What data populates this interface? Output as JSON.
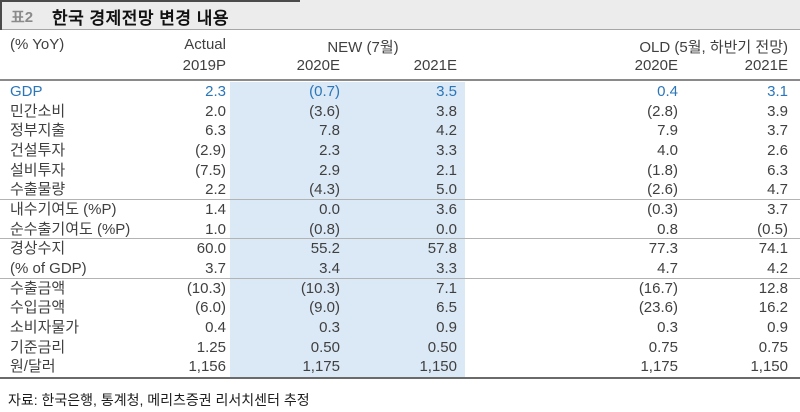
{
  "title_bar": {
    "tag": "표2",
    "title": "한국 경제전망 변경 내용"
  },
  "table": {
    "unit_label": "(% YoY)",
    "group_headers": {
      "actual": "Actual",
      "new": "NEW (7월)",
      "old": "OLD (5월, 하반기 전망)"
    },
    "year_headers": [
      "2019P",
      "2020E",
      "2021E",
      "2020E",
      "2021E"
    ],
    "rows": [
      {
        "label": "GDP",
        "values": [
          "2.3",
          "(0.7)",
          "3.5",
          "0.4",
          "3.1"
        ],
        "accent": true,
        "sep_after": false
      },
      {
        "label": "민간소비",
        "values": [
          "2.0",
          "(3.6)",
          "3.8",
          "(2.8)",
          "3.9"
        ],
        "accent": false,
        "sep_after": false
      },
      {
        "label": "정부지출",
        "values": [
          "6.3",
          "7.8",
          "4.2",
          "7.9",
          "3.7"
        ],
        "accent": false,
        "sep_after": false
      },
      {
        "label": "건설투자",
        "values": [
          "(2.9)",
          "2.3",
          "3.3",
          "4.0",
          "2.6"
        ],
        "accent": false,
        "sep_after": false
      },
      {
        "label": "설비투자",
        "values": [
          "(7.5)",
          "2.9",
          "2.1",
          "(1.8)",
          "6.3"
        ],
        "accent": false,
        "sep_after": false
      },
      {
        "label": "수출물량",
        "values": [
          "2.2",
          "(4.3)",
          "5.0",
          "(2.6)",
          "4.7"
        ],
        "accent": false,
        "sep_after": true
      },
      {
        "label": "내수기여도 (%P)",
        "values": [
          "1.4",
          "0.0",
          "3.6",
          "(0.3)",
          "3.7"
        ],
        "accent": false,
        "sep_after": false
      },
      {
        "label": "순수출기여도 (%P)",
        "values": [
          "1.0",
          "(0.8)",
          "0.0",
          "0.8",
          "(0.5)"
        ],
        "accent": false,
        "sep_after": true
      },
      {
        "label": "경상수지",
        "values": [
          "60.0",
          "55.2",
          "57.8",
          "77.3",
          "74.1"
        ],
        "accent": false,
        "sep_after": false
      },
      {
        "label": "(% of GDP)",
        "values": [
          "3.7",
          "3.4",
          "3.3",
          "4.7",
          "4.2"
        ],
        "accent": false,
        "sep_after": true
      },
      {
        "label": "수출금액",
        "values": [
          "(10.3)",
          "(10.3)",
          "7.1",
          "(16.7)",
          "12.8"
        ],
        "accent": false,
        "sep_after": false
      },
      {
        "label": "수입금액",
        "values": [
          "(6.0)",
          "(9.0)",
          "6.5",
          "(23.6)",
          "16.2"
        ],
        "accent": false,
        "sep_after": false
      },
      {
        "label": "소비자물가",
        "values": [
          "0.4",
          "0.3",
          "0.9",
          "0.3",
          "0.9"
        ],
        "accent": false,
        "sep_after": false
      },
      {
        "label": "기준금리",
        "values": [
          "1.25",
          "0.50",
          "0.50",
          "0.75",
          "0.75"
        ],
        "accent": false,
        "sep_after": false
      },
      {
        "label": "원/달러",
        "values": [
          "1,156",
          "1,175",
          "1,150",
          "1,175",
          "1,150"
        ],
        "accent": false,
        "sep_after": false
      }
    ]
  },
  "footer": {
    "source": "자료: 한국은행, 통계청, 메리츠증권 리서치센터 추정"
  },
  "colors": {
    "accent_blue": "#2b76b9",
    "highlight_bg": "#dbe8f5",
    "title_bar_bg": "#ececec",
    "body_text": "#404040"
  }
}
